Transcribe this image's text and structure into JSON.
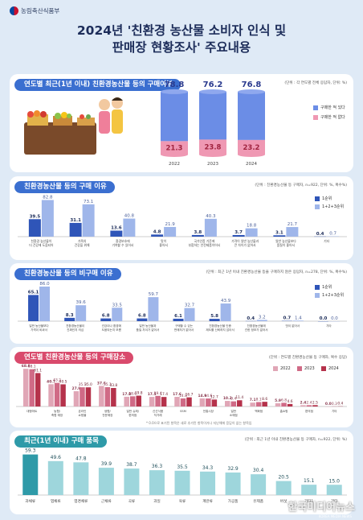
{
  "header": {
    "ministry": "농림축산식품부",
    "title_line1": "2024년 '친환경 농산물 소비자 인식 및",
    "title_line2": "판매장 현황조사' 주요내용"
  },
  "colors": {
    "c1": "#2f55b8",
    "c2": "#9fb6ea",
    "blue_head": "#3b6fd0",
    "pink_head": "#d94a6c",
    "green_head": "#2e9aa8",
    "bar_pink": "#e0a6b6",
    "bar_red": "#b5324b"
  },
  "watermark": {
    "main": "한국미디어뉴스",
    "sub": "KOREA MEDIA NEWS"
  },
  "chart_data": [
    {
      "type": "bar",
      "title": "연도별 최근(1년 이내) 친환경농산물 등의 구매여부",
      "unit": "(단위 : 각 연도별 전체 응답자, 단위: %)",
      "categories": [
        "2022",
        "2023",
        "2024"
      ],
      "series": [
        {
          "name": "구매한 적 있다",
          "values": [
            78.8,
            76.2,
            76.8
          ]
        },
        {
          "name": "구매한 적 없다",
          "values": [
            21.3,
            23.8,
            23.2
          ]
        }
      ]
    },
    {
      "type": "bar",
      "title": "친환경농산물 등의 구매 이유",
      "unit": "(단위 : 친환경농산물 등 구매자, n=922, 단위: %, 복수%)",
      "categories": [
        "친환경 농산물이\n더 건강에 도움되어",
        "가족의\n건강을 위해",
        "환경보호에\n기여할 수 있어서",
        "맛이\n좋아서",
        "국가인증 기준에\n부합하는 안전제품이어서",
        "가격이 일반 농산물과\n큰 차이가 없어서",
        "일반 농산물보다\n품질이 좋아서",
        "기타"
      ],
      "series": [
        {
          "name": "1순위",
          "values": [
            39.5,
            31.1,
            13.6,
            4.8,
            3.8,
            3.7,
            3.1,
            0.4
          ]
        },
        {
          "name": "1+2+3순위",
          "values": [
            82.8,
            73.1,
            40.8,
            21.9,
            40.3,
            18.8,
            21.7,
            0.7
          ]
        }
      ]
    },
    {
      "type": "bar",
      "title": "친환경농산물 등의 비구매 이유",
      "unit": "(단위 : 최근 1년 이내 친환경농산물 등을 구매하지 않은 응답자, n=278, 단위: %, 복수%)",
      "categories": [
        "일반 농산물보다\n가격이 비싸서",
        "친환경농산물이\n진짜인지 의심",
        "건강이나 환경에\n도움되는지 모름",
        "일반 농산물과\n품질 차이가 없어서",
        "구매할 수 있는\n판매처가 없어서",
        "친환경농산물 인증\n제도를 신뢰하지 않아서",
        "친환경농산물에\n관한 정보가 없어서",
        "맛이 없어서",
        "기타"
      ],
      "series": [
        {
          "name": "1순위",
          "values": [
            65.1,
            8.3,
            6.8,
            6.8,
            6.1,
            5.8,
            0.4,
            0.7,
            0.0
          ]
        },
        {
          "name": "1+2+3순위",
          "values": [
            86.0,
            39.6,
            33.5,
            59.7,
            32.7,
            43.9,
            3.2,
            1.4,
            0.0
          ]
        }
      ]
    },
    {
      "type": "bar",
      "title": "연도별 친환경농산물 등의 구매장소",
      "unit": "(단위 : 연도별 친환경농산물 등 구매자, 복수 응답)",
      "note": "* 0.0으로 표기된 항목은 새로 추가된 항목이거나 지난해에 응답이 없는 항목임",
      "categories": [
        "대형마트",
        "농협/\n축협 매장",
        "온라인\n쇼핑몰",
        "생협/\n전문매장",
        "일반 슈퍼/\n편의점",
        "신선식품\n직거래",
        "SSM",
        "전통시장",
        "일반\n소매점",
        "백화점",
        "홈쇼핑",
        "편의점",
        "기타"
      ],
      "series": [
        {
          "name": "2022",
          "values": [
            68.8,
            40.7,
            27.9,
            37.6,
            17.8,
            17.5,
            17.6,
            14.9,
            10.2,
            7.1,
            5.9,
            2.4,
            0.0
          ]
        },
        {
          "name": "2023",
          "values": [
            68.1,
            43.2,
            35.1,
            35.3,
            18.6,
            19.4,
            14.8,
            14.6,
            9.4,
            8.1,
            6.8,
            2.4,
            0.3
          ]
        },
        {
          "name": "2024",
          "values": [
            61.1,
            40.5,
            35.0,
            33.8,
            19.8,
            17.4,
            16.7,
            12.7,
            11.4,
            8.6,
            4.6,
            2.5,
            0.4
          ]
        }
      ]
    },
    {
      "type": "bar",
      "title": "최근(1년 이내) 구매 품목",
      "unit": "(단위 : 최근 1년 이내 친환경농산물 등 구매자, n=922, 단위: %)",
      "categories": [
        "과채류",
        "엽채류",
        "엽경채류",
        "근채류",
        "곡류",
        "과일",
        "육류",
        "계란류",
        "가공품",
        "유제품",
        "버섯",
        "기타1",
        "기타"
      ],
      "series": [
        {
          "name": "구매 품목",
          "values": [
            59.3,
            49.6,
            47.8,
            39.9,
            38.7,
            36.3,
            35.5,
            34.3,
            32.9,
            30.4,
            20.5,
            15.1,
            15.0
          ]
        }
      ]
    }
  ]
}
